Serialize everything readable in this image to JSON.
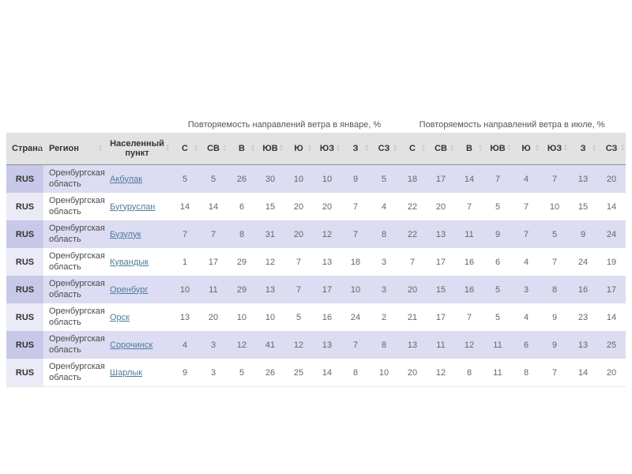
{
  "table": {
    "group_headers": {
      "january": "Повторяемость направлений ветра в январе, %",
      "july": "Повторяемость направлений ветра в июле, %"
    },
    "columns": {
      "country": "Страна",
      "region": "Регион",
      "settlement": "Населенный пункт",
      "directions": [
        "С",
        "СВ",
        "В",
        "ЮВ",
        "Ю",
        "ЮЗ",
        "З",
        "СЗ"
      ]
    },
    "rows": [
      {
        "country": "RUS",
        "region": "Оренбургская область",
        "settlement": "Акбулак",
        "january": [
          5,
          5,
          26,
          30,
          10,
          10,
          9,
          5
        ],
        "july": [
          18,
          17,
          14,
          7,
          4,
          7,
          13,
          20
        ]
      },
      {
        "country": "RUS",
        "region": "Оренбургская область",
        "settlement": "Бугуруслан",
        "january": [
          14,
          14,
          6,
          15,
          20,
          20,
          7,
          4
        ],
        "july": [
          22,
          20,
          7,
          5,
          7,
          10,
          15,
          14
        ]
      },
      {
        "country": "RUS",
        "region": "Оренбургская область",
        "settlement": "Бузулук",
        "january": [
          7,
          7,
          8,
          31,
          20,
          12,
          7,
          8
        ],
        "july": [
          22,
          13,
          11,
          9,
          7,
          5,
          9,
          24
        ]
      },
      {
        "country": "RUS",
        "region": "Оренбургская область",
        "settlement": "Кувандык",
        "january": [
          1,
          17,
          29,
          12,
          7,
          13,
          18,
          3
        ],
        "july": [
          7,
          17,
          16,
          6,
          4,
          7,
          24,
          19
        ]
      },
      {
        "country": "RUS",
        "region": "Оренбургская область",
        "settlement": "Оренбург",
        "january": [
          10,
          11,
          29,
          13,
          7,
          17,
          10,
          3
        ],
        "july": [
          20,
          15,
          16,
          5,
          3,
          8,
          16,
          17
        ]
      },
      {
        "country": "RUS",
        "region": "Оренбургская область",
        "settlement": "Орск",
        "january": [
          13,
          20,
          10,
          10,
          5,
          16,
          24,
          2
        ],
        "july": [
          21,
          17,
          7,
          5,
          4,
          9,
          23,
          14
        ]
      },
      {
        "country": "RUS",
        "region": "Оренбургская область",
        "settlement": "Сорочинск",
        "january": [
          4,
          3,
          12,
          41,
          12,
          13,
          7,
          8
        ],
        "july": [
          13,
          11,
          12,
          11,
          6,
          9,
          13,
          25
        ]
      },
      {
        "country": "RUS",
        "region": "Оренбургская область",
        "settlement": "Шарлык",
        "january": [
          9,
          3,
          5,
          26,
          25,
          14,
          8,
          10
        ],
        "july": [
          20,
          12,
          8,
          11,
          8,
          7,
          14,
          20
        ]
      }
    ]
  },
  "colors": {
    "header_bg": "#e2e2e2",
    "row_alt": "#dcdcf2",
    "col_alt_odd": "#c8c8e8",
    "col_alt_even": "#ebebf7",
    "link": "#4d7c9c",
    "title_text": "#555555",
    "sort_icon": "#c9c9c9"
  }
}
